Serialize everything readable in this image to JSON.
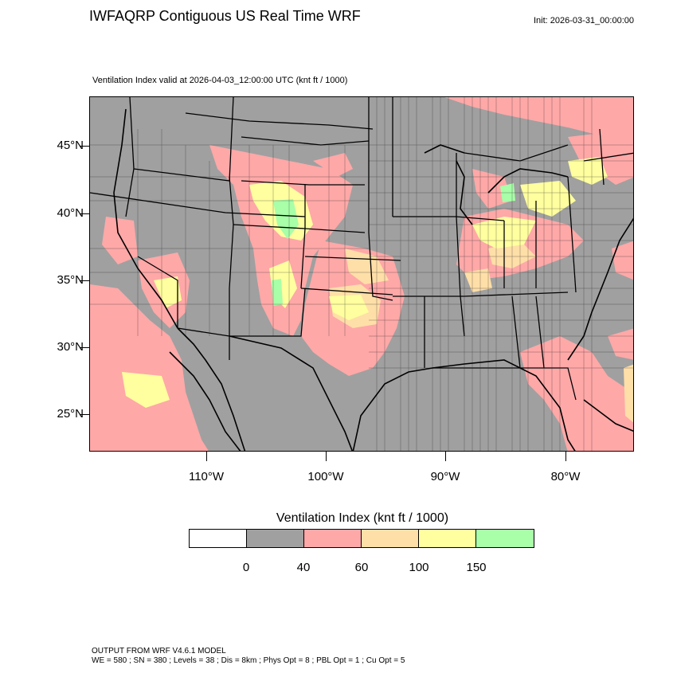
{
  "title": "IWFAQRP Contiguous US Real Time WRF",
  "init": "Init: 2026-03-31_00:00:00",
  "subtitle": "Ventilation Index valid at 2026-04-03_12:00:00 UTC   (knt ft / 1000)",
  "latitude_labels": [
    "45°N",
    "40°N",
    "35°N",
    "30°N",
    "25°N"
  ],
  "longitude_labels": [
    "110°W",
    "100°W",
    "90°W",
    "80°W"
  ],
  "legend": {
    "title": "Ventilation Index  (knt ft / 1000)",
    "ticks": [
      "0",
      "40",
      "60",
      "100",
      "150"
    ],
    "colors": [
      "#ffffff",
      "#a0a0a0",
      "#ffa8a8",
      "#ffdfa8",
      "#ffff9f",
      "#a8ffa8"
    ]
  },
  "colors": {
    "land_base": "#a0a0a0",
    "boundary": "#000000"
  },
  "footer": {
    "line1": "OUTPUT FROM WRF V4.6.1 MODEL",
    "line2": "WE = 580 ; SN = 380 ; Levels = 38 ; Dis = 8km ; Phys Opt = 8 ; PBL Opt = 1 ; Cu Opt = 5"
  }
}
